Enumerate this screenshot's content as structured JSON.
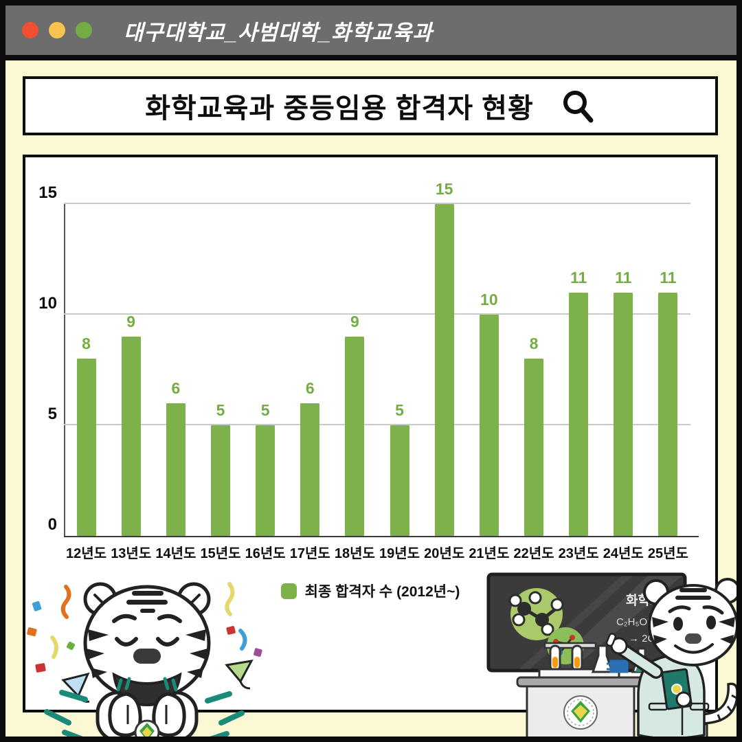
{
  "titlebar": {
    "text": "대구대학교_사범대학_화학교육과",
    "traffic_lights": {
      "red": "#f14e33",
      "yellow": "#f8c44f",
      "green": "#74ac45"
    }
  },
  "header": {
    "title": "화학교육과 중등임용 합격자 현황",
    "search_icon": "magnifier"
  },
  "chart_data": {
    "type": "bar",
    "categories": [
      "12년도",
      "13년도",
      "14년도",
      "15년도",
      "16년도",
      "17년도",
      "18년도",
      "19년도",
      "20년도",
      "21년도",
      "22년도",
      "23년도",
      "24년도",
      "25년도"
    ],
    "values": [
      8,
      9,
      6,
      5,
      5,
      6,
      9,
      5,
      15,
      10,
      8,
      11,
      11,
      11
    ],
    "title": "화학교육과 중등임용 합격자 현황",
    "xlabel": "",
    "ylabel": "",
    "ylim": [
      0,
      15
    ],
    "yticks": [
      0,
      5,
      10,
      15
    ],
    "grid": true,
    "bar_color": "#7cb249",
    "value_label_color": "#74ad43",
    "legend": {
      "label": "최종 합격자 수 (2012년~)",
      "position": "bottom"
    }
  },
  "legend": {
    "label": "최종 합격자 수 (2012년~)"
  },
  "illustrations": {
    "left_mascot": "celebrating-tiger-with-confetti-icon",
    "right_mascot": "tiger-teacher-with-chalkboard-icon",
    "chalkboard": {
      "title": "화학교육",
      "equation_line1": "C₂H₅OH + 3O₂",
      "equation_line2": "→ 2CO₂ + 3H₂O"
    }
  },
  "colors": {
    "background": "#fbf9d3",
    "titlebar_gray": "#6d6d6d",
    "frame_black": "#0d0d0d",
    "panel_white": "#ffffff",
    "gridline": "#c9c9c9",
    "teal_accent": "#1b8a78",
    "board_dark": "#3b3b3b",
    "coat_mint": "#d6e8e2"
  }
}
